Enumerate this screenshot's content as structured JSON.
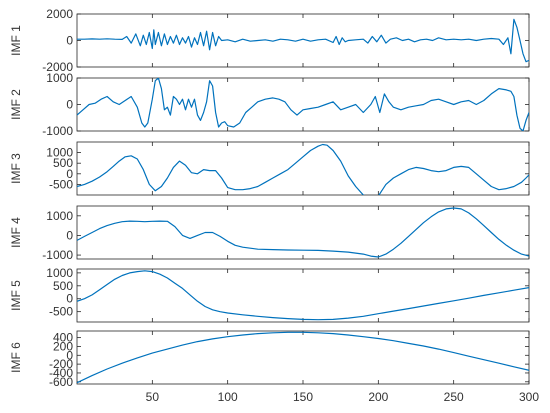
{
  "chart_data": {
    "type": "line",
    "line_color": "#0072BD",
    "grid": false,
    "x_range": [
      0,
      300
    ],
    "x_ticks": [
      50,
      100,
      150,
      200,
      250,
      300
    ],
    "x_tick_labels": [
      "50",
      "100",
      "150",
      "200",
      "250",
      "300"
    ],
    "panels": [
      {
        "ylabel": "IMF 1",
        "ylim": [
          -2000,
          2000
        ],
        "y_ticks": [
          2000,
          0,
          -2000
        ],
        "y_tick_labels": [
          "2000",
          "0",
          "-2000"
        ],
        "series": [
          {
            "x": [
              0,
              5,
              10,
              15,
              20,
              25,
              30,
              33,
              36,
              39,
              42,
              44,
              46,
              48,
              50,
              51,
              52,
              54,
              56,
              58,
              60,
              62,
              64,
              66,
              68,
              70,
              72,
              74,
              76,
              78,
              80,
              82,
              84,
              86,
              88,
              90,
              92,
              94,
              96,
              100,
              105,
              110,
              115,
              120,
              125,
              130,
              135,
              140,
              145,
              150,
              155,
              160,
              165,
              170,
              172,
              174,
              176,
              178,
              180,
              185,
              190,
              193,
              196,
              199,
              202,
              205,
              208,
              212,
              216,
              220,
              224,
              228,
              232,
              236,
              240,
              245,
              250,
              255,
              260,
              265,
              270,
              275,
              280,
              283,
              286,
              288,
              290,
              292,
              294,
              296,
              298,
              300
            ],
            "y": [
              100,
              100,
              120,
              100,
              130,
              100,
              80,
              300,
              -200,
              500,
              -400,
              400,
              -300,
              600,
              -600,
              800,
              -300,
              600,
              -400,
              500,
              -300,
              300,
              -200,
              400,
              -300,
              200,
              -200,
              300,
              -500,
              200,
              -300,
              600,
              -400,
              700,
              -700,
              600,
              -400,
              300,
              0,
              50,
              -100,
              100,
              -50,
              0,
              50,
              -50,
              100,
              50,
              -50,
              100,
              -50,
              50,
              100,
              -150,
              300,
              -300,
              200,
              -100,
              0,
              50,
              100,
              -200,
              300,
              -100,
              400,
              -200,
              100,
              200,
              0,
              100,
              -100,
              50,
              100,
              0,
              200,
              50,
              100,
              50,
              100,
              0,
              100,
              150,
              100,
              -300,
              200,
              -1000,
              1600,
              1000,
              0,
              -1000,
              -1600,
              -1500
            ]
          }
        ]
      },
      {
        "ylabel": "IMF 2",
        "ylim": [
          -1000,
          1000
        ],
        "y_ticks": [
          1000,
          0,
          -1000
        ],
        "y_tick_labels": [
          "1000",
          "0",
          "-1000"
        ],
        "series": [
          {
            "x": [
              0,
              4,
              8,
              12,
              16,
              20,
              24,
              28,
              32,
              36,
              40,
              43,
              45,
              47,
              50,
              52,
              54,
              56,
              58,
              60,
              62,
              64,
              66,
              68,
              70,
              72,
              74,
              76,
              78,
              80,
              82,
              84,
              86,
              88,
              90,
              92,
              94,
              96,
              98,
              100,
              104,
              108,
              112,
              116,
              120,
              125,
              130,
              134,
              138,
              142,
              146,
              150,
              155,
              160,
              165,
              170,
              175,
              180,
              185,
              190,
              195,
              198,
              201,
              204,
              207,
              210,
              215,
              220,
              225,
              230,
              235,
              240,
              245,
              250,
              255,
              260,
              265,
              270,
              275,
              280,
              285,
              288,
              290,
              292,
              294,
              296,
              298,
              300
            ],
            "y": [
              -400,
              -200,
              0,
              50,
              200,
              300,
              100,
              0,
              150,
              300,
              -100,
              -700,
              -850,
              -700,
              200,
              900,
              1000,
              600,
              -200,
              -100,
              -400,
              300,
              200,
              0,
              200,
              -200,
              200,
              -100,
              200,
              -400,
              -600,
              -300,
              100,
              900,
              700,
              -300,
              -850,
              -700,
              -650,
              -800,
              -850,
              -700,
              -300,
              -100,
              100,
              200,
              250,
              200,
              100,
              -200,
              -400,
              -200,
              -150,
              -100,
              0,
              100,
              -200,
              -100,
              0,
              -300,
              0,
              300,
              -300,
              400,
              100,
              -100,
              -200,
              -100,
              -50,
              0,
              150,
              200,
              100,
              0,
              100,
              150,
              0,
              150,
              400,
              600,
              550,
              500,
              300,
              -400,
              -900,
              -1000,
              -600,
              -300
            ]
          }
        ]
      },
      {
        "ylabel": "IMF 3",
        "ylim": [
          -1000,
          1500
        ],
        "y_ticks": [
          1000,
          500,
          0,
          -500
        ],
        "y_tick_labels": [
          "1000",
          "500",
          "0",
          "-500"
        ],
        "series": [
          {
            "x": [
              0,
              5,
              10,
              15,
              20,
              24,
              28,
              32,
              36,
              40,
              44,
              48,
              52,
              56,
              60,
              64,
              68,
              72,
              76,
              80,
              84,
              88,
              92,
              96,
              100,
              105,
              110,
              115,
              120,
              125,
              130,
              135,
              140,
              145,
              150,
              155,
              160,
              163,
              166,
              170,
              175,
              180,
              185,
              190,
              193,
              196,
              200,
              205,
              210,
              215,
              220,
              225,
              230,
              235,
              240,
              245,
              250,
              255,
              260,
              265,
              270,
              275,
              280,
              285,
              290,
              295,
              298,
              300
            ],
            "y": [
              -600,
              -500,
              -350,
              -150,
              100,
              350,
              600,
              800,
              850,
              700,
              200,
              -500,
              -800,
              -600,
              -200,
              300,
              600,
              400,
              50,
              0,
              200,
              150,
              150,
              -200,
              -650,
              -750,
              -750,
              -700,
              -600,
              -400,
              -200,
              0,
              200,
              500,
              800,
              1100,
              1300,
              1380,
              1350,
              1100,
              600,
              -100,
              -600,
              -1000,
              -1100,
              -1100,
              -1050,
              -500,
              -200,
              0,
              200,
              300,
              250,
              150,
              100,
              150,
              300,
              350,
              300,
              0,
              -300,
              -600,
              -750,
              -700,
              -600,
              -400,
              -200,
              -50
            ]
          }
        ]
      },
      {
        "ylabel": "IMF 4",
        "ylim": [
          -1200,
          1500
        ],
        "y_ticks": [
          1000,
          0,
          -1000
        ],
        "y_tick_labels": [
          "1000",
          "0",
          "-1000"
        ],
        "series": [
          {
            "x": [
              0,
              5,
              10,
              15,
              20,
              25,
              30,
              35,
              40,
              45,
              50,
              55,
              60,
              65,
              70,
              75,
              80,
              85,
              90,
              95,
              100,
              105,
              110,
              115,
              120,
              130,
              140,
              150,
              160,
              170,
              180,
              190,
              195,
              200,
              205,
              210,
              215,
              220,
              225,
              230,
              235,
              240,
              245,
              250,
              255,
              260,
              265,
              270,
              275,
              280,
              285,
              290,
              295,
              300
            ],
            "y": [
              -250,
              -50,
              150,
              350,
              500,
              620,
              700,
              730,
              720,
              700,
              720,
              730,
              720,
              450,
              0,
              -150,
              0,
              150,
              150,
              -50,
              -300,
              -500,
              -600,
              -650,
              -700,
              -720,
              -740,
              -750,
              -760,
              -800,
              -850,
              -950,
              -1050,
              -1100,
              -950,
              -700,
              -400,
              -50,
              300,
              650,
              950,
              1200,
              1350,
              1400,
              1350,
              1150,
              850,
              500,
              150,
              -200,
              -500,
              -750,
              -950,
              -1050
            ]
          }
        ]
      },
      {
        "ylabel": "IMF 5",
        "ylim": [
          -900,
          1150
        ],
        "y_ticks": [
          1000,
          500,
          0,
          -500
        ],
        "y_tick_labels": [
          "1000",
          "500",
          "0",
          "-500"
        ],
        "series": [
          {
            "x": [
              0,
              5,
              10,
              15,
              20,
              25,
              30,
              35,
              40,
              45,
              50,
              55,
              60,
              65,
              70,
              75,
              80,
              85,
              90,
              95,
              100,
              110,
              120,
              130,
              140,
              150,
              160,
              170,
              180,
              190,
              200,
              210,
              220,
              230,
              240,
              250,
              260,
              270,
              280,
              290,
              300
            ],
            "y": [
              -100,
              0,
              150,
              350,
              550,
              750,
              900,
              1000,
              1050,
              1080,
              1050,
              950,
              800,
              600,
              400,
              150,
              -100,
              -300,
              -430,
              -500,
              -550,
              -620,
              -680,
              -730,
              -770,
              -800,
              -810,
              -800,
              -750,
              -680,
              -580,
              -480,
              -380,
              -280,
              -180,
              -80,
              20,
              130,
              230,
              330,
              430
            ]
          }
        ]
      },
      {
        "ylabel": "IMF 6",
        "ylim": [
          -650,
          550
        ],
        "y_ticks": [
          400,
          200,
          0,
          -200,
          -400,
          -600
        ],
        "y_tick_labels": [
          "400",
          "200",
          "0",
          "-200",
          "-400",
          "-600"
        ],
        "series": [
          {
            "x": [
              0,
              10,
              20,
              30,
              40,
              50,
              60,
              70,
              80,
              90,
              100,
              110,
              120,
              130,
              140,
              150,
              160,
              170,
              180,
              190,
              200,
              210,
              220,
              230,
              240,
              250,
              260,
              270,
              280,
              290,
              300
            ],
            "y": [
              -620,
              -460,
              -310,
              -180,
              -60,
              50,
              140,
              230,
              310,
              370,
              420,
              460,
              490,
              510,
              520,
              520,
              510,
              490,
              460,
              420,
              380,
              330,
              270,
              210,
              140,
              60,
              -20,
              -100,
              -180,
              -260,
              -340
            ]
          }
        ]
      }
    ]
  }
}
